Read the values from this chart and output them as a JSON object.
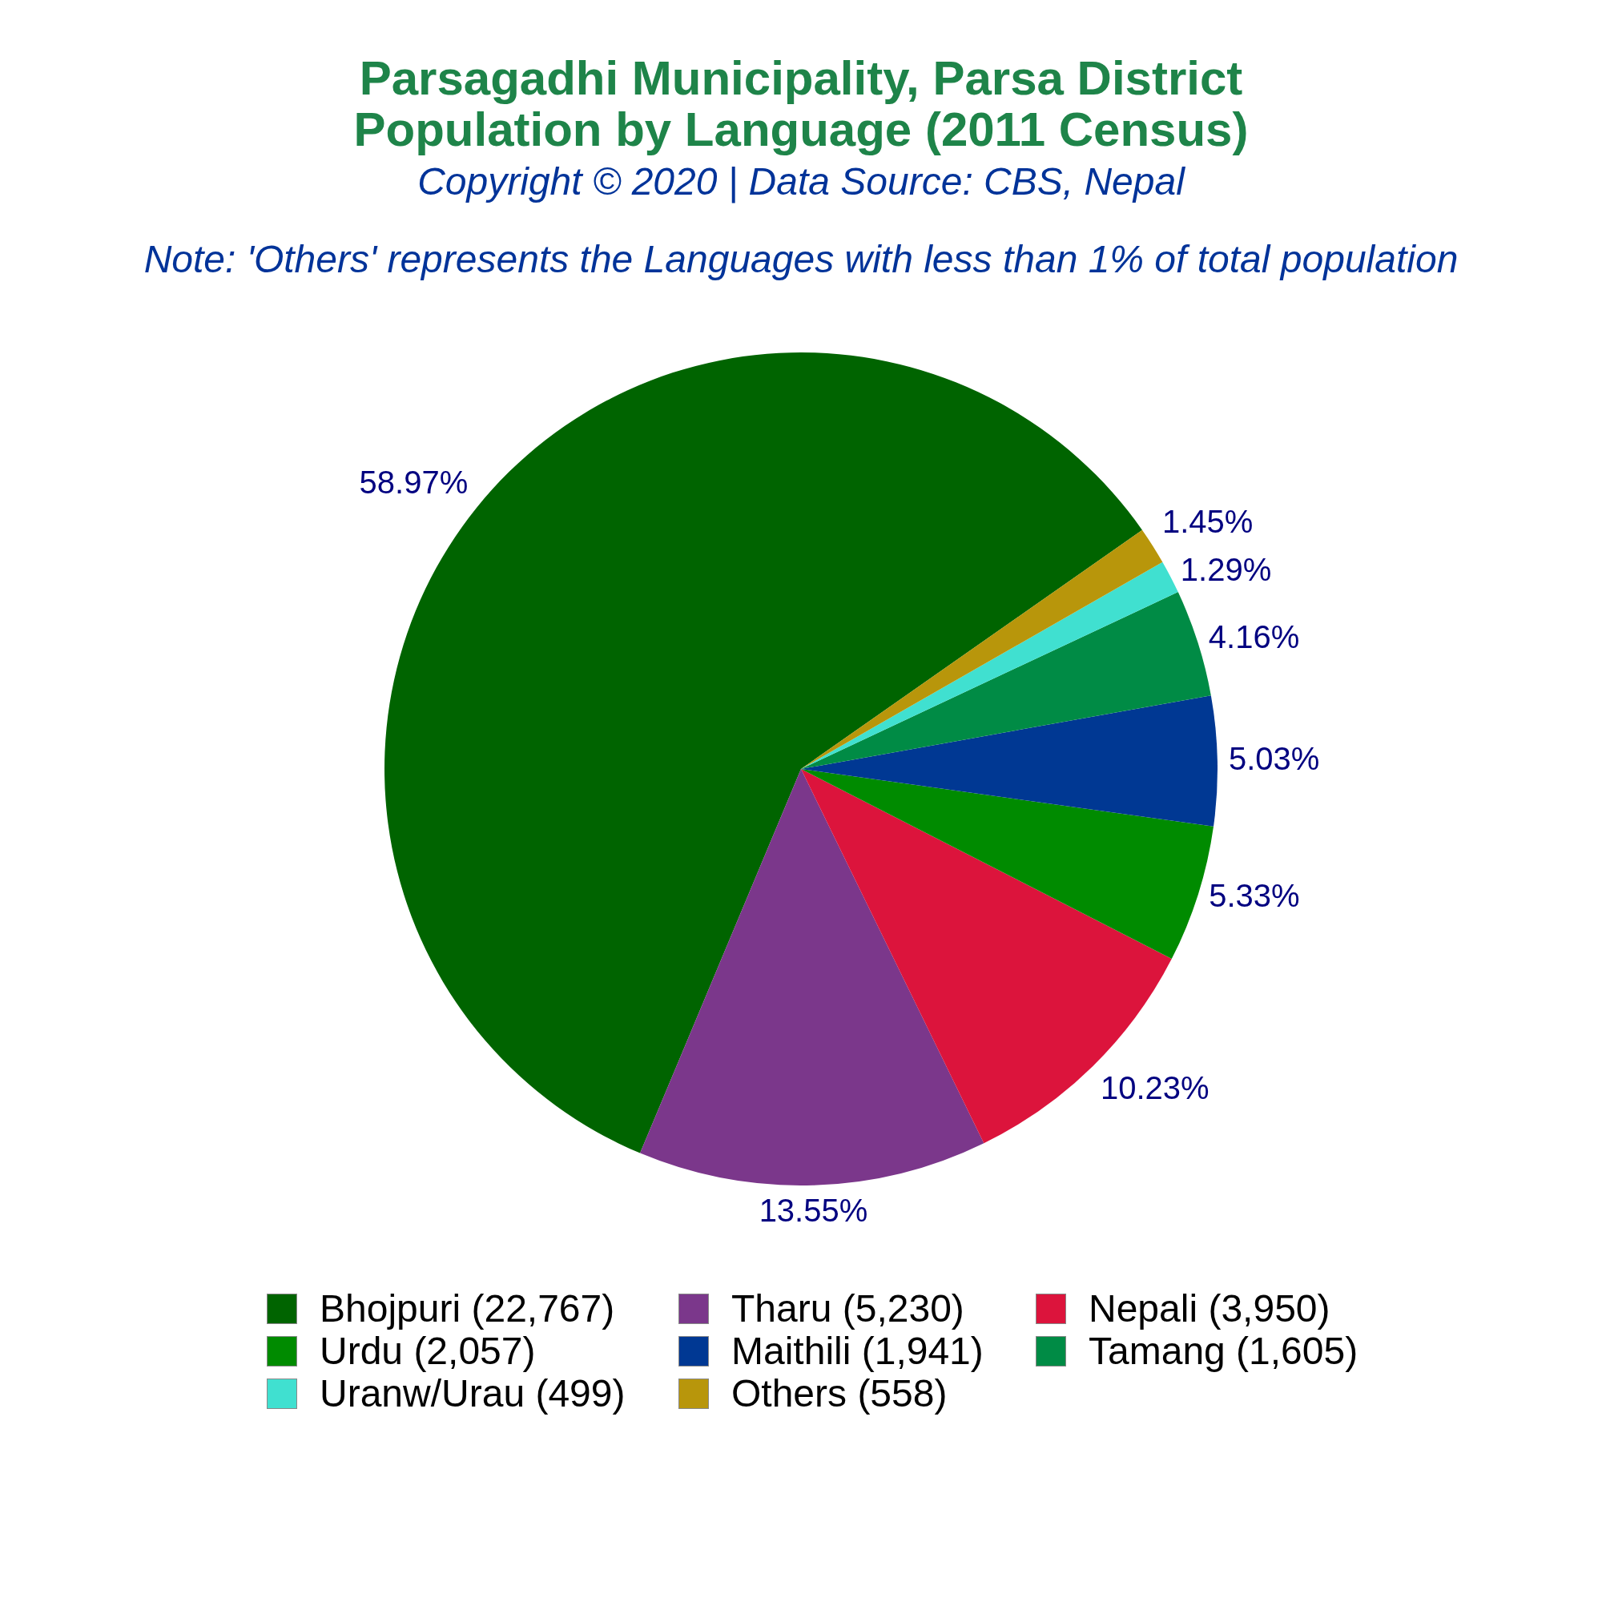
{
  "chart_data": {
    "type": "pie",
    "title": "Parsagadhi Municipality, Parsa District\nPopulation by Language (2011 Census)",
    "subtitle": "Copyright © 2020 | Data Source: CBS, Nepal",
    "annotations": [
      "Note: 'Others' represents the Languages with less than 1% of total population"
    ],
    "categories": [
      "Bhojpuri (22,767)",
      "Tharu (5,230)",
      "Nepali (3,950)",
      "Urdu (2,057)",
      "Maithili (1,941)",
      "Tamang (1,605)",
      "Uranw/Urau (499)",
      "Others (558)"
    ],
    "values": [
      58.97,
      13.55,
      10.23,
      5.33,
      5.03,
      4.16,
      1.29,
      1.45
    ],
    "colors": [
      "#006400",
      "#7b378b",
      "#dc143c",
      "#008b00",
      "#003893",
      "#008b45",
      "#40e0d0",
      "#b8960b"
    ],
    "value_labels": [
      "58.97%",
      "13.55%",
      "10.23%",
      "5.33%",
      "5.03%",
      "4.16%",
      "1.29%",
      "1.45%"
    ],
    "legend": "bottom"
  }
}
